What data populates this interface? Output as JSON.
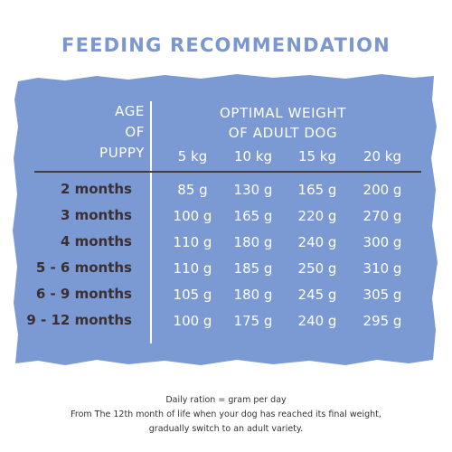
{
  "title": "FEEDING RECOMMENDATION",
  "colors": {
    "title": "#7b97cf",
    "panel": "#7b9ad3",
    "row_label": "#3a2f33",
    "divider": "#3f3f47"
  },
  "table": {
    "age_header": [
      "AGE",
      "OF",
      "PUPPY"
    ],
    "weight_header": [
      "OPTIMAL WEIGHT",
      "OF ADULT DOG"
    ],
    "columns": [
      "5 kg",
      "10 kg",
      "15 kg",
      "20 kg"
    ],
    "rows": [
      {
        "label": "2 months",
        "values": [
          "85 g",
          "130 g",
          "165 g",
          "200 g"
        ]
      },
      {
        "label": "3 months",
        "values": [
          "100 g",
          "165 g",
          "220 g",
          "270 g"
        ]
      },
      {
        "label": "4 months",
        "values": [
          "110 g",
          "180 g",
          "240 g",
          "300 g"
        ]
      },
      {
        "label": "5 - 6 months",
        "values": [
          "110 g",
          "185 g",
          "250 g",
          "310 g"
        ]
      },
      {
        "label": "6 - 9 months",
        "values": [
          "105 g",
          "180 g",
          "245 g",
          "305 g"
        ]
      },
      {
        "label": "9 - 12 months",
        "values": [
          "100 g",
          "175 g",
          "240 g",
          "295 g"
        ]
      }
    ]
  },
  "footnote": {
    "line1": "Daily ration = gram per day",
    "line2": "From The 12th month of life when your dog has reached its final weight,",
    "line3": "gradually switch to an adult variety."
  }
}
